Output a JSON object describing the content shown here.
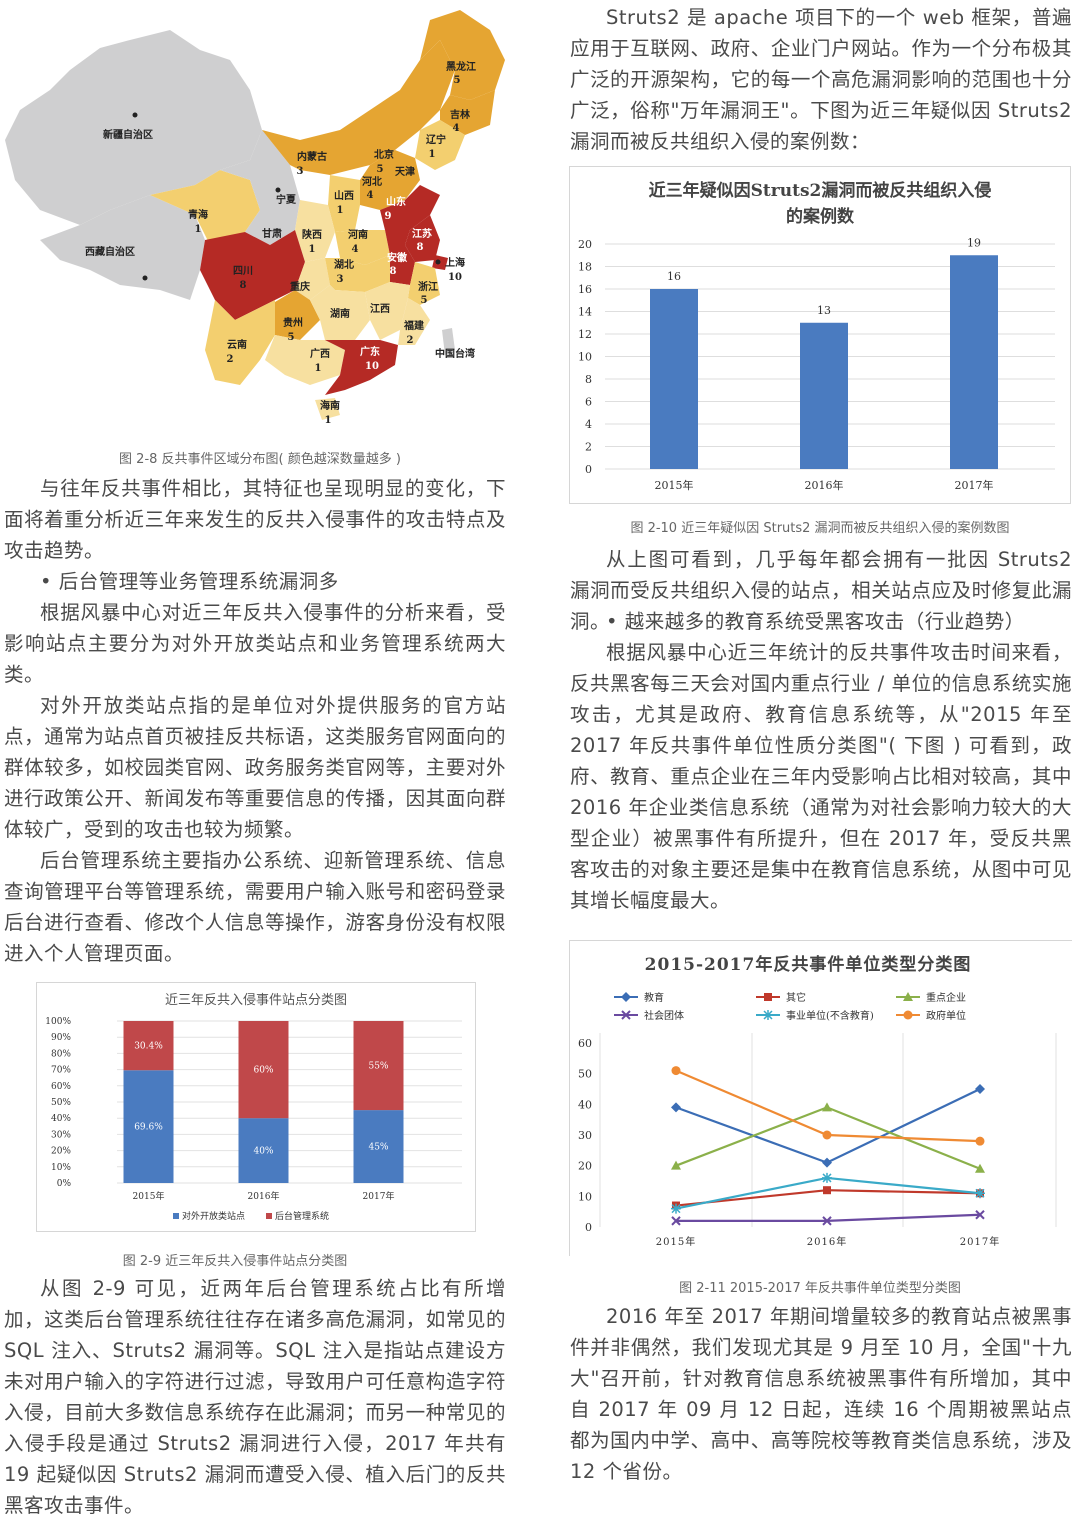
{
  "map": {
    "caption": "图 2-8   反共事件区域分布图( 颜色越深数量越多 )",
    "regions": [
      {
        "name": "新疆自治区",
        "count": ""
      },
      {
        "name": "西藏自治区",
        "count": ""
      },
      {
        "name": "青海",
        "count": "1"
      },
      {
        "name": "甘肃",
        "count": ""
      },
      {
        "name": "四川",
        "count": "8"
      },
      {
        "name": "云南",
        "count": "2"
      },
      {
        "name": "内蒙古",
        "count": "3"
      },
      {
        "name": "宁夏",
        "count": ""
      },
      {
        "name": "陕西",
        "count": "1"
      },
      {
        "name": "山西",
        "count": "1"
      },
      {
        "name": "河北",
        "count": "4"
      },
      {
        "name": "北京",
        "count": "5"
      },
      {
        "name": "天津",
        "count": ""
      },
      {
        "name": "辽宁",
        "count": "1"
      },
      {
        "name": "吉林",
        "count": "4"
      },
      {
        "name": "黑龙江",
        "count": "5"
      },
      {
        "name": "山东",
        "count": "9"
      },
      {
        "name": "河南",
        "count": "4"
      },
      {
        "name": "江苏",
        "count": "8"
      },
      {
        "name": "安徽",
        "count": "8"
      },
      {
        "name": "上海",
        "count": "10"
      },
      {
        "name": "湖北",
        "count": "3"
      },
      {
        "name": "重庆",
        "count": ""
      },
      {
        "name": "贵州",
        "count": "5"
      },
      {
        "name": "湖南",
        "count": ""
      },
      {
        "name": "江西",
        "count": ""
      },
      {
        "name": "浙江",
        "count": "5"
      },
      {
        "name": "福建",
        "count": "2"
      },
      {
        "name": "广西",
        "count": "1"
      },
      {
        "name": "广东",
        "count": "10"
      },
      {
        "name": "海南",
        "count": "1"
      },
      {
        "name": "中国台湾",
        "count": ""
      }
    ]
  },
  "left_text": {
    "p1": "与往年反共事件相比，其特征也呈现明显的变化，下面将着重分析近三年来发生的反共入侵事件的攻击特点及攻击趋势。",
    "h1": "• 后台管理等业务管理系统漏洞多",
    "p2": "根据风暴中心对近三年反共入侵事件的分析来看，受影响站点主要分为对外开放类站点和业务管理系统两大类。",
    "p3": "对外开放类站点指的是单位对外提供服务的官方站点，通常为站点首页被挂反共标语，这类服务官网面向的群体较多，如校园类官网、政务服务类官网等，主要对外进行政策公开、新闻发布等重要信息的传播，因其面向群体较广，受到的攻击也较为频繁。",
    "p4": "后台管理系统主要指办公系统、迎新管理系统、信息查询管理平台等管理系统，需要用户输入账号和密码登录后台进行查看、修改个人信息等操作，游客身份没有权限进入个人管理页面。",
    "fig9_caption": "图 2-9   近三年反共入侵事件站点分类图",
    "p5": "从图 2-9 可见，近两年后台管理系统占比有所增加，这类后台管理系统往往存在诸多高危漏洞，如常见的 SQL 注入、Struts2 漏洞等。SQL 注入是指站点建设方未对用户输入的字符进行过滤，导致用户可任意构造字符入侵，目前大多数信息系统存在此漏洞；而另一种常见的入侵手段是通过 Struts2 漏洞进行入侵，2017 年共有 19 起疑似因 Struts2 漏洞而遭受入侵、植入后门的反共黑客攻击事件。"
  },
  "right_text": {
    "p1": "Struts2 是 apache 项目下的一个 web 框架，普遍应用于互联网、政府、企业门户网站。作为一个分布极其广泛的开源架构，它的每一个高危漏洞影响的范围也十分广泛，俗称\"万年漏洞王\"。下图为近三年疑似因 Struts2 漏洞而被反共组织入侵的案例数：",
    "fig10_caption": "图 2-10   近三年疑似因 Struts2 漏洞而被反共组织入侵的案例数图",
    "p2": "从上图可看到，几乎每年都会拥有一批因 Struts2 漏洞而受反共组织入侵的站点，相关站点应及时修复此漏洞。",
    "h2": "• 越来越多的教育系统受黑客攻击（行业趋势）",
    "p3": "根据风暴中心近三年统计的反共事件攻击时间来看，反共黑客每三天会对国内重点行业 / 单位的信息系统实施攻击，尤其是政府、教育信息系统等，从\"2015 年至 2017 年反共事件单位性质分类图\"( 下图 ) 可看到，政府、教育、重点企业在三年内受影响占比相对较高，其中 2016 年企业类信息系统（通常为对社会影响力较大的大型企业）被黑事件有所提升，但在 2017 年，受反共黑客攻击的对象主要还是集中在教育信息系统，从图中可见其增长幅度最大。",
    "fig11_caption": "图 2-11   2015-2017 年反共事件单位类型分类图",
    "p4": "2016 年至 2017 年期间增量较多的教育站点被黑事件并非偶然，我们发现尤其是 9 月至 10 月，全国\"十九大\"召开前，针对教育信息系统被黑事件有所增加，其中自 2017 年 09 月 12 日起，连续 16 个周期被黑站点都为国内中学、高中、高等院校等教育类信息系统，涉及 12 个省份。"
  },
  "chart_data": [
    {
      "type": "bar",
      "title": "近三年反共入侵事件站点分类图",
      "stacked": true,
      "categories": [
        "2015年",
        "2016年",
        "2017年"
      ],
      "series": [
        {
          "name": "对外开放类站点",
          "values": [
            69.6,
            40,
            45
          ],
          "labels": [
            "69.6%",
            "40%",
            "45%"
          ],
          "color": "#4a7bc0"
        },
        {
          "name": "后台管理系统",
          "values": [
            30.4,
            60,
            55
          ],
          "labels": [
            "30.4%",
            "60%",
            "55%"
          ],
          "color": "#c0484a"
        }
      ],
      "yticks": [
        "0%",
        "10%",
        "20%",
        "30%",
        "40%",
        "50%",
        "60%",
        "70%",
        "80%",
        "90%",
        "100%"
      ],
      "ylim": [
        0,
        100
      ],
      "legend": "bottom"
    },
    {
      "type": "bar",
      "title": "近三年疑似因Struts2漏洞而被反共组织入侵的案例数",
      "categories": [
        "2015年",
        "2016年",
        "2017年"
      ],
      "values": [
        16,
        13,
        19
      ],
      "yticks": [
        "0",
        "2",
        "4",
        "6",
        "8",
        "10",
        "12",
        "14",
        "16",
        "18",
        "20"
      ],
      "ylim": [
        0,
        20
      ],
      "color": "#4a7bc0",
      "grid": true
    },
    {
      "type": "line",
      "title": "2015-2017年反共事件单位类型分类图",
      "categories": [
        "2015年",
        "2016年",
        "2017年"
      ],
      "series": [
        {
          "name": "教育",
          "values": [
            39,
            21,
            45
          ],
          "color": "#3b6db5",
          "marker": "diamond"
        },
        {
          "name": "其它",
          "values": [
            7,
            12,
            11
          ],
          "color": "#c0392b",
          "marker": "square"
        },
        {
          "name": "重点企业",
          "values": [
            20,
            39,
            19
          ],
          "color": "#8bb04a",
          "marker": "triangle"
        },
        {
          "name": "社会团体",
          "values": [
            2,
            2,
            4
          ],
          "color": "#6a4aa0",
          "marker": "x"
        },
        {
          "name": "事业单位(不含教育)",
          "values": [
            6,
            16,
            11
          ],
          "color": "#3aaac8",
          "marker": "star"
        },
        {
          "name": "政府单位",
          "values": [
            51,
            30,
            28
          ],
          "color": "#ef8a33",
          "marker": "circle"
        }
      ],
      "yticks": [
        "0",
        "10",
        "20",
        "30",
        "40",
        "50",
        "60"
      ],
      "ylim": [
        0,
        60
      ],
      "legend": "top"
    }
  ]
}
